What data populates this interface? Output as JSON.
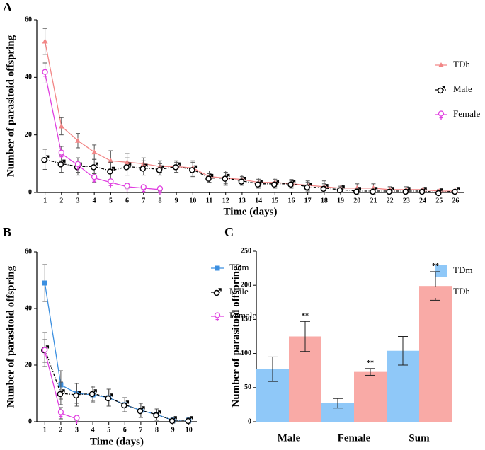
{
  "chart_data": [
    {
      "type": "line",
      "panel": "A",
      "xlabel": "Time (days)",
      "ylabel": "Number of parasitoid offspring",
      "x": [
        1,
        2,
        3,
        4,
        5,
        6,
        7,
        8,
        9,
        10,
        11,
        12,
        13,
        14,
        15,
        16,
        17,
        18,
        19,
        20,
        21,
        22,
        23,
        24,
        25,
        26
      ],
      "xlim": [
        0.5,
        26.5
      ],
      "xticks": [
        1,
        2,
        3,
        4,
        5,
        6,
        7,
        8,
        9,
        10,
        11,
        12,
        13,
        14,
        15,
        16,
        17,
        18,
        19,
        20,
        21,
        22,
        23,
        24,
        25,
        26
      ],
      "ylim": [
        0,
        60
      ],
      "yticks": [
        0,
        20,
        40,
        60
      ],
      "legend": "right",
      "series": [
        {
          "name": "TDh",
          "color": "#f28686",
          "marker": "triangle",
          "values": [
            52.5,
            23,
            18,
            14,
            11,
            10.5,
            10,
            9,
            9,
            8.5,
            5.5,
            5,
            4.5,
            3.5,
            3.5,
            3,
            2.5,
            2,
            1.5,
            1.5,
            1.5,
            1,
            1,
            1,
            0.5,
            0.5
          ],
          "errors": [
            4.5,
            3,
            2.5,
            2.5,
            3.5,
            3,
            2,
            2,
            2,
            2.5,
            2,
            2.5,
            1.5,
            1.5,
            1.5,
            1.5,
            1.5,
            2,
            1,
            1.5,
            1.5,
            1,
            1,
            0.5,
            0.5,
            0.5
          ]
        },
        {
          "name": "Male",
          "color": "#000000",
          "marker": "male",
          "dash": true,
          "values": [
            11.5,
            10,
            9,
            9,
            7.5,
            9,
            8.5,
            8,
            9,
            8,
            5,
            5,
            4,
            3,
            3,
            3,
            2,
            1.5,
            1,
            0.5,
            0.5,
            0.5,
            0.5,
            0.5,
            0,
            0.5
          ],
          "errors": [
            3.5,
            3,
            3,
            2.5,
            3,
            3,
            2.5,
            2,
            1.5,
            2.5,
            1.5,
            2,
            1.5,
            1.5,
            1.5,
            1,
            1.5,
            1.5,
            1,
            1,
            1,
            0.5,
            0.5,
            0.5,
            0.5,
            0.5
          ]
        },
        {
          "name": "Female",
          "color": "#e03ee0",
          "marker": "female",
          "values": [
            41.5,
            13.5,
            9.5,
            5,
            3.5,
            2,
            1.5,
            1,
            null,
            null,
            null,
            null,
            null,
            null,
            null,
            null,
            null,
            null,
            null,
            null,
            null,
            null,
            null,
            null,
            null,
            null
          ],
          "errors": [
            3.5,
            2.5,
            2.5,
            1.5,
            1,
            0.5,
            0.5,
            0.5,
            null,
            null,
            null,
            null,
            null,
            null,
            null,
            null,
            null,
            null,
            null,
            null,
            null,
            null,
            null,
            null,
            null,
            null
          ]
        }
      ]
    },
    {
      "type": "line",
      "panel": "B",
      "xlabel": "Time (days)",
      "ylabel": "Number of parasitoid offspring",
      "x": [
        1,
        2,
        3,
        4,
        5,
        6,
        7,
        8,
        9,
        10
      ],
      "xlim": [
        0.5,
        10.5
      ],
      "xticks": [
        1,
        2,
        3,
        4,
        5,
        6,
        7,
        8,
        9,
        10
      ],
      "ylim": [
        0,
        60
      ],
      "yticks": [
        0,
        20,
        40,
        60
      ],
      "legend": "right",
      "series": [
        {
          "name": "TDm",
          "color": "#3b8fe0",
          "marker": "square",
          "values": [
            49,
            13,
            10,
            9.5,
            8.5,
            6,
            4,
            2.5,
            0.5,
            0.5
          ],
          "errors": [
            6.5,
            5,
            3.5,
            2.5,
            3,
            2.5,
            2.5,
            2,
            1,
            1
          ]
        },
        {
          "name": "Male",
          "color": "#000000",
          "marker": "male",
          "dash": true,
          "values": [
            25.5,
            10,
            9.5,
            10,
            8.5,
            6,
            4,
            2.5,
            0.5,
            0.5
          ],
          "errors": [
            6,
            4,
            4,
            2.5,
            3,
            2.5,
            2.5,
            2,
            1,
            1
          ]
        },
        {
          "name": "Female",
          "color": "#e03ee0",
          "marker": "female",
          "values": [
            25,
            3,
            1,
            null,
            null,
            null,
            null,
            null,
            null,
            null
          ],
          "errors": [
            4,
            2,
            0.5,
            null,
            null,
            null,
            null,
            null,
            null,
            null
          ]
        }
      ]
    },
    {
      "type": "bar",
      "panel": "C",
      "ylabel": "Number of parasitoid offspring",
      "categories": [
        "Male",
        "Female",
        "Sum"
      ],
      "ylim": [
        0,
        250
      ],
      "yticks": [
        0,
        50,
        100,
        150,
        200,
        250
      ],
      "legend": "right",
      "series": [
        {
          "name": "TDm",
          "color": "#8fc8f8",
          "values": [
            77,
            27,
            104
          ],
          "errors": [
            18,
            7,
            21
          ]
        },
        {
          "name": "TDh",
          "color": "#f9aaa6",
          "values": [
            125,
            73,
            199
          ],
          "errors": [
            22,
            5,
            21
          ],
          "significance": [
            "**",
            "**",
            "**"
          ]
        }
      ]
    }
  ]
}
